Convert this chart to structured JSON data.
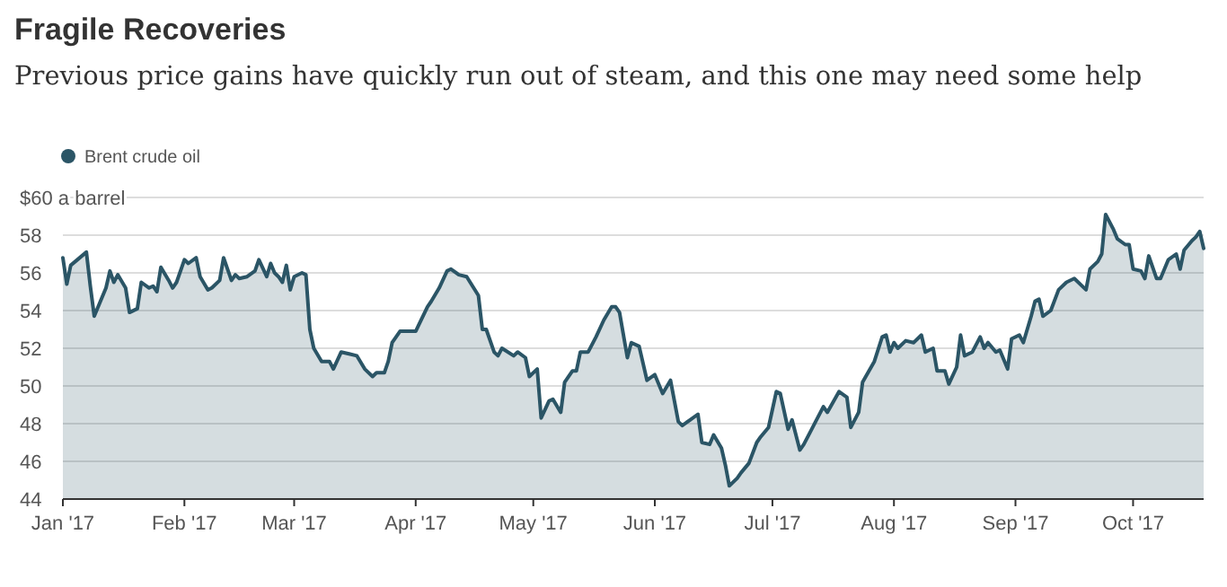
{
  "chart_data": {
    "type": "area",
    "title": "Fragile Recoveries",
    "subtitle": "Previous price gains have quickly run out of steam, and this one may need some help",
    "x": [
      "2017-01-01",
      "2017-01-02",
      "2017-01-03",
      "2017-01-07",
      "2017-01-08",
      "2017-01-09",
      "2017-01-12",
      "2017-01-13",
      "2017-01-14",
      "2017-01-15",
      "2017-01-17",
      "2017-01-18",
      "2017-01-20",
      "2017-01-21",
      "2017-01-23",
      "2017-01-24",
      "2017-01-25",
      "2017-01-26",
      "2017-01-28",
      "2017-01-29",
      "2017-01-30",
      "2017-02-01",
      "2017-02-02",
      "2017-02-04",
      "2017-02-05",
      "2017-02-07",
      "2017-02-08",
      "2017-02-10",
      "2017-02-11",
      "2017-02-13",
      "2017-02-14",
      "2017-02-15",
      "2017-02-17",
      "2017-02-19",
      "2017-02-20",
      "2017-02-22",
      "2017-02-23",
      "2017-02-24",
      "2017-02-25",
      "2017-02-26",
      "2017-02-27",
      "2017-02-28",
      "2017-03-01",
      "2017-03-03",
      "2017-03-04",
      "2017-03-05",
      "2017-03-06",
      "2017-03-08",
      "2017-03-10",
      "2017-03-11",
      "2017-03-13",
      "2017-03-15",
      "2017-03-17",
      "2017-03-19",
      "2017-03-21",
      "2017-03-22",
      "2017-03-24",
      "2017-03-25",
      "2017-03-26",
      "2017-03-28",
      "2017-03-30",
      "2017-04-01",
      "2017-04-04",
      "2017-04-05",
      "2017-04-07",
      "2017-04-09",
      "2017-04-10",
      "2017-04-12",
      "2017-04-14",
      "2017-04-17",
      "2017-04-18",
      "2017-04-19",
      "2017-04-21",
      "2017-04-22",
      "2017-04-23",
      "2017-04-26",
      "2017-04-27",
      "2017-04-29",
      "2017-04-30",
      "2017-05-02",
      "2017-05-03",
      "2017-05-05",
      "2017-05-06",
      "2017-05-08",
      "2017-05-09",
      "2017-05-11",
      "2017-05-12",
      "2017-05-13",
      "2017-05-15",
      "2017-05-17",
      "2017-05-19",
      "2017-05-21",
      "2017-05-22",
      "2017-05-23",
      "2017-05-25",
      "2017-05-26",
      "2017-05-28",
      "2017-05-30",
      "2017-06-01",
      "2017-06-03",
      "2017-06-05",
      "2017-06-07",
      "2017-06-08",
      "2017-06-10",
      "2017-06-12",
      "2017-06-13",
      "2017-06-15",
      "2017-06-16",
      "2017-06-18",
      "2017-06-19",
      "2017-06-20",
      "2017-06-22",
      "2017-06-23",
      "2017-06-25",
      "2017-06-27",
      "2017-06-28",
      "2017-06-30",
      "2017-07-02",
      "2017-07-03",
      "2017-07-05",
      "2017-07-06",
      "2017-07-08",
      "2017-07-09",
      "2017-07-11",
      "2017-07-12",
      "2017-07-14",
      "2017-07-15",
      "2017-07-18",
      "2017-07-20",
      "2017-07-21",
      "2017-07-23",
      "2017-07-24",
      "2017-07-27",
      "2017-07-29",
      "2017-07-30",
      "2017-07-31",
      "2017-08-01",
      "2017-08-02",
      "2017-08-04",
      "2017-08-06",
      "2017-08-08",
      "2017-08-09",
      "2017-08-11",
      "2017-08-12",
      "2017-08-14",
      "2017-08-15",
      "2017-08-17",
      "2017-08-18",
      "2017-08-19",
      "2017-08-21",
      "2017-08-23",
      "2017-08-24",
      "2017-08-25",
      "2017-08-27",
      "2017-08-28",
      "2017-08-30",
      "2017-08-31",
      "2017-09-02",
      "2017-09-03",
      "2017-09-05",
      "2017-09-06",
      "2017-09-07",
      "2017-09-08",
      "2017-09-10",
      "2017-09-12",
      "2017-09-14",
      "2017-09-16",
      "2017-09-19",
      "2017-09-20",
      "2017-09-22",
      "2017-09-23",
      "2017-09-24",
      "2017-09-26",
      "2017-09-27",
      "2017-09-29",
      "2017-09-30",
      "2017-10-01",
      "2017-10-03",
      "2017-10-04",
      "2017-10-05",
      "2017-10-07",
      "2017-10-08",
      "2017-10-10",
      "2017-10-12",
      "2017-10-13",
      "2017-10-14",
      "2017-10-16",
      "2017-10-17",
      "2017-10-18",
      "2017-10-19"
    ],
    "series": [
      {
        "name": "Brent crude oil",
        "color": "#2b5566",
        "values": [
          56.8,
          55.4,
          56.4,
          57.1,
          55.3,
          53.7,
          55.2,
          56.1,
          55.5,
          55.9,
          55.2,
          53.9,
          54.1,
          55.5,
          55.2,
          55.3,
          55.0,
          56.3,
          55.6,
          55.2,
          55.5,
          56.7,
          56.5,
          56.8,
          55.8,
          55.1,
          55.2,
          55.6,
          56.8,
          55.6,
          55.9,
          55.7,
          55.8,
          56.1,
          56.7,
          55.8,
          56.5,
          56.0,
          55.8,
          55.5,
          56.4,
          55.1,
          55.8,
          56.0,
          55.9,
          53.0,
          52.0,
          51.3,
          51.3,
          50.9,
          51.8,
          51.7,
          51.6,
          50.9,
          50.5,
          50.7,
          50.7,
          51.3,
          52.3,
          52.9,
          52.9,
          52.9,
          54.2,
          54.5,
          55.2,
          56.1,
          56.2,
          55.9,
          55.8,
          54.8,
          53.0,
          53.0,
          51.8,
          51.6,
          52.0,
          51.6,
          51.8,
          51.5,
          50.5,
          50.9,
          48.3,
          49.2,
          49.3,
          48.6,
          50.2,
          50.8,
          50.8,
          51.8,
          51.8,
          52.6,
          53.5,
          54.2,
          54.2,
          53.9,
          51.5,
          52.3,
          52.1,
          50.3,
          50.6,
          49.6,
          50.3,
          48.1,
          47.9,
          48.2,
          48.5,
          47.0,
          46.9,
          47.4,
          46.7,
          45.8,
          44.7,
          45.1,
          45.4,
          45.9,
          47.0,
          47.3,
          47.8,
          49.7,
          49.6,
          47.7,
          48.2,
          46.6,
          46.9,
          47.7,
          48.1,
          48.9,
          48.6,
          49.7,
          49.4,
          47.8,
          48.6,
          50.2,
          51.3,
          52.6,
          52.7,
          51.8,
          52.3,
          52.0,
          52.4,
          52.3,
          52.7,
          51.8,
          52.0,
          50.8,
          50.8,
          50.1,
          51.0,
          52.7,
          51.6,
          51.8,
          52.6,
          52.0,
          52.3,
          51.8,
          51.9,
          50.9,
          52.5,
          52.7,
          52.3,
          53.7,
          54.5,
          54.6,
          53.7,
          54.0,
          55.1,
          55.5,
          55.7,
          55.1,
          56.2,
          56.6,
          57.0,
          59.1,
          58.3,
          57.8,
          57.5,
          57.5,
          56.2,
          56.1,
          55.7,
          56.9,
          55.7,
          55.7,
          56.7,
          57.0,
          56.2,
          57.2,
          57.7,
          57.9,
          58.2,
          57.3
        ]
      }
    ],
    "xlim": [
      "2017-01-01",
      "2017-10-19"
    ],
    "xticks": [
      {
        "value": "2017-01-01",
        "label": "Jan '17"
      },
      {
        "value": "2017-02-01",
        "label": "Feb '17"
      },
      {
        "value": "2017-03-01",
        "label": "Mar '17"
      },
      {
        "value": "2017-04-01",
        "label": "Apr '17"
      },
      {
        "value": "2017-05-01",
        "label": "May '17"
      },
      {
        "value": "2017-06-01",
        "label": "Jun '17"
      },
      {
        "value": "2017-07-01",
        "label": "Jul '17"
      },
      {
        "value": "2017-08-01",
        "label": "Aug '17"
      },
      {
        "value": "2017-09-01",
        "label": "Sep '17"
      },
      {
        "value": "2017-10-01",
        "label": "Oct '17"
      }
    ],
    "ylim": [
      44,
      60
    ],
    "yticks": [
      44,
      46,
      48,
      50,
      52,
      54,
      56,
      58,
      {
        "value": 60,
        "label": "$60 a barrel"
      }
    ],
    "grid": "y",
    "legend": "top left"
  }
}
